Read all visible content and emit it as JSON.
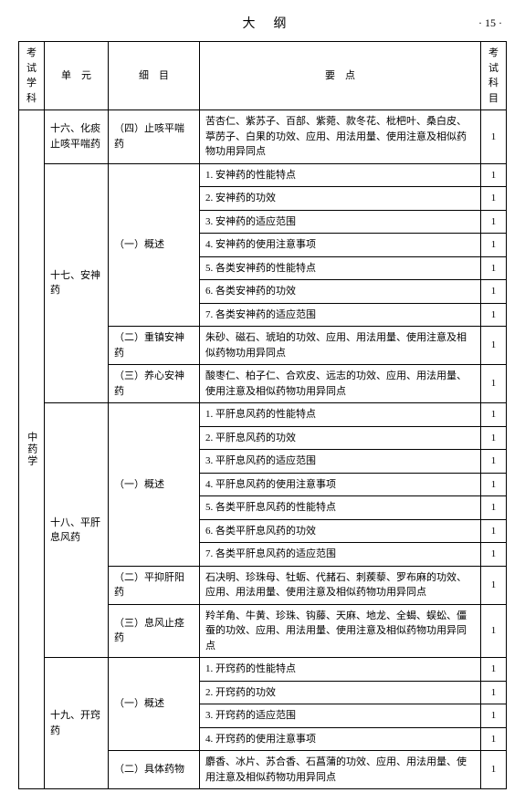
{
  "header": {
    "title": "大纲",
    "page": "· 15 ·"
  },
  "columns": {
    "subject": "考试学科",
    "unit": "单　元",
    "detail": "细　目",
    "point": "要　点",
    "score": "考试科目"
  },
  "subject": "中药学",
  "units": [
    {
      "name": "十六、化痰止咳平喘药",
      "details": [
        {
          "name": "（四）止咳平喘药",
          "points": [
            {
              "text": "苦杏仁、紫苏子、百部、紫菀、款冬花、枇杷叶、桑白皮、葶苈子、白果的功效、应用、用法用量、使用注意及相似药物功用异同点",
              "score": "1"
            }
          ]
        }
      ]
    },
    {
      "name": "十七、安神药",
      "details": [
        {
          "name": "（一）概述",
          "points": [
            {
              "text": "1. 安神药的性能特点",
              "score": "1"
            },
            {
              "text": "2. 安神药的功效",
              "score": "1"
            },
            {
              "text": "3. 安神药的适应范围",
              "score": "1"
            },
            {
              "text": "4. 安神药的使用注意事项",
              "score": "1"
            },
            {
              "text": "5. 各类安神药的性能特点",
              "score": "1"
            },
            {
              "text": "6. 各类安神药的功效",
              "score": "1"
            },
            {
              "text": "7. 各类安神药的适应范围",
              "score": "1"
            }
          ]
        },
        {
          "name": "（二）重镇安神药",
          "points": [
            {
              "text": "朱砂、磁石、琥珀的功效、应用、用法用量、使用注意及相似药物功用异同点",
              "score": "1"
            }
          ]
        },
        {
          "name": "（三）养心安神药",
          "points": [
            {
              "text": "酸枣仁、柏子仁、合欢皮、远志的功效、应用、用法用量、使用注意及相似药物功用异同点",
              "score": "1"
            }
          ]
        }
      ]
    },
    {
      "name": "十八、平肝息风药",
      "details": [
        {
          "name": "（一）概述",
          "points": [
            {
              "text": "1. 平肝息风药的性能特点",
              "score": "1"
            },
            {
              "text": "2. 平肝息风药的功效",
              "score": "1"
            },
            {
              "text": "3. 平肝息风药的适应范围",
              "score": "1"
            },
            {
              "text": "4. 平肝息风药的使用注意事项",
              "score": "1"
            },
            {
              "text": "5. 各类平肝息风药的性能特点",
              "score": "1"
            },
            {
              "text": "6. 各类平肝息风药的功效",
              "score": "1"
            },
            {
              "text": "7. 各类平肝息风药的适应范围",
              "score": "1"
            }
          ]
        },
        {
          "name": "（二）平抑肝阳药",
          "points": [
            {
              "text": "石决明、珍珠母、牡蛎、代赭石、刺蒺藜、罗布麻的功效、应用、用法用量、使用注意及相似药物功用异同点",
              "score": "1"
            }
          ]
        },
        {
          "name": "（三）息风止痉药",
          "points": [
            {
              "text": "羚羊角、牛黄、珍珠、钩藤、天麻、地龙、全蝎、蜈蚣、僵蚕的功效、应用、用法用量、使用注意及相似药物功用异同点",
              "score": "1"
            }
          ]
        }
      ]
    },
    {
      "name": "十九、开窍药",
      "details": [
        {
          "name": "（一）概述",
          "points": [
            {
              "text": "1. 开窍药的性能特点",
              "score": "1"
            },
            {
              "text": "2. 开窍药的功效",
              "score": "1"
            },
            {
              "text": "3. 开窍药的适应范围",
              "score": "1"
            },
            {
              "text": "4. 开窍药的使用注意事项",
              "score": "1"
            }
          ]
        },
        {
          "name": "（二）具体药物",
          "points": [
            {
              "text": "麝香、冰片、苏合香、石菖蒲的功效、应用、用法用量、使用注意及相似药物功用异同点",
              "score": "1"
            }
          ]
        }
      ]
    }
  ]
}
